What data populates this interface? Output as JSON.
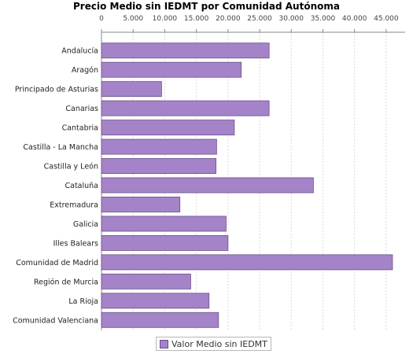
{
  "chart_data": {
    "type": "bar",
    "orientation": "horizontal",
    "title": "Precio Medio sin IEDMT por Comunidad Autónoma",
    "xlabel": "",
    "ylabel": "",
    "xlim": [
      0,
      48000
    ],
    "ticks": [
      0,
      5000,
      10000,
      15000,
      20000,
      25000,
      30000,
      35000,
      40000,
      45000
    ],
    "tick_labels": [
      "0",
      "5.000",
      "10.000",
      "15.000",
      "20.000",
      "25.000",
      "30.000",
      "35.000",
      "40.000",
      "45.000"
    ],
    "grid": true,
    "legend_position": "bottom",
    "categories": [
      "Andalucía",
      "Aragón",
      "Principado de Asturias",
      "Canarias",
      "Cantabria",
      "Castilla - La Mancha",
      "Castilla y León",
      "Cataluña",
      "Extremadura",
      "Galicia",
      "Illes Balears",
      "Comunidad de Madrid",
      "Región de Murcia",
      "La Rioja",
      "Comunidad Valenciana"
    ],
    "series": [
      {
        "name": "Valor Medio sin IEDMT",
        "color": "#a583c9",
        "values": [
          26500,
          22100,
          9500,
          26500,
          21000,
          18200,
          18100,
          33500,
          12400,
          19700,
          20000,
          46000,
          14100,
          17000,
          18500
        ]
      }
    ]
  }
}
